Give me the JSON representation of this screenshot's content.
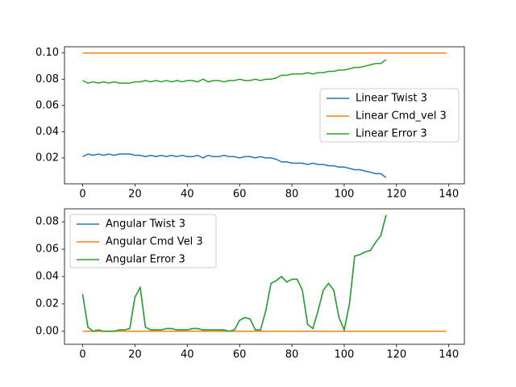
{
  "chart_data": [
    {
      "type": "line",
      "legend": "center right",
      "x": [
        0,
        2,
        4,
        6,
        8,
        10,
        12,
        14,
        16,
        18,
        20,
        22,
        24,
        26,
        28,
        30,
        32,
        34,
        36,
        38,
        40,
        42,
        44,
        46,
        48,
        50,
        52,
        54,
        56,
        58,
        60,
        62,
        64,
        66,
        68,
        70,
        72,
        74,
        76,
        78,
        80,
        82,
        84,
        86,
        88,
        90,
        92,
        94,
        96,
        98,
        100,
        102,
        104,
        106,
        108,
        110,
        112,
        114,
        116,
        139
      ],
      "xlim": [
        -6.95,
        145.95
      ],
      "xticks": [
        0,
        20,
        40,
        60,
        80,
        100,
        120,
        140
      ],
      "ylim": [
        0.00025,
        0.10475
      ],
      "yticks": [
        0.02,
        0.04,
        0.06,
        0.08,
        {
          "value": 0.1,
          "label": "0.10"
        }
      ],
      "series": [
        {
          "name": "Linear Twist 3",
          "color": "#1f77b4",
          "values": [
            0.021,
            0.023,
            0.022,
            0.023,
            0.022,
            0.023,
            0.022,
            0.023,
            0.023,
            0.023,
            0.022,
            0.022,
            0.021,
            0.022,
            0.021,
            0.022,
            0.021,
            0.022,
            0.021,
            0.022,
            0.021,
            0.021,
            0.022,
            0.02,
            0.022,
            0.021,
            0.021,
            0.022,
            0.021,
            0.021,
            0.02,
            0.021,
            0.021,
            0.02,
            0.021,
            0.02,
            0.02,
            0.019,
            0.017,
            0.017,
            0.016,
            0.016,
            0.016,
            0.015,
            0.016,
            0.015,
            0.015,
            0.014,
            0.014,
            0.013,
            0.013,
            0.012,
            0.011,
            0.011,
            0.01,
            0.009,
            0.008,
            0.008,
            0.005,
            null
          ]
        },
        {
          "name": "Linear Cmd_vel 3",
          "color": "#ff7f0e",
          "values": [
            0.1,
            0.1,
            0.1,
            0.1,
            0.1,
            0.1,
            0.1,
            0.1,
            0.1,
            0.1,
            0.1,
            0.1,
            0.1,
            0.1,
            0.1,
            0.1,
            0.1,
            0.1,
            0.1,
            0.1,
            0.1,
            0.1,
            0.1,
            0.1,
            0.1,
            0.1,
            0.1,
            0.1,
            0.1,
            0.1,
            0.1,
            0.1,
            0.1,
            0.1,
            0.1,
            0.1,
            0.1,
            0.1,
            0.1,
            0.1,
            0.1,
            0.1,
            0.1,
            0.1,
            0.1,
            0.1,
            0.1,
            0.1,
            0.1,
            0.1,
            0.1,
            0.1,
            0.1,
            0.1,
            0.1,
            0.1,
            0.1,
            0.1,
            0.1,
            0.1
          ]
        },
        {
          "name": "Linear Error 3",
          "color": "#2ca02c",
          "values": [
            0.079,
            0.077,
            0.078,
            0.077,
            0.078,
            0.077,
            0.078,
            0.077,
            0.077,
            0.077,
            0.078,
            0.078,
            0.079,
            0.078,
            0.079,
            0.078,
            0.079,
            0.078,
            0.079,
            0.078,
            0.079,
            0.079,
            0.078,
            0.08,
            0.078,
            0.079,
            0.079,
            0.078,
            0.079,
            0.079,
            0.08,
            0.079,
            0.079,
            0.08,
            0.079,
            0.08,
            0.08,
            0.081,
            0.083,
            0.083,
            0.084,
            0.084,
            0.084,
            0.085,
            0.084,
            0.085,
            0.085,
            0.086,
            0.086,
            0.087,
            0.087,
            0.088,
            0.089,
            0.089,
            0.09,
            0.091,
            0.092,
            0.092,
            0.095,
            null
          ]
        }
      ]
    },
    {
      "type": "line",
      "legend": "upper left",
      "x": [
        0,
        2,
        4,
        6,
        8,
        10,
        12,
        14,
        16,
        18,
        20,
        22,
        24,
        26,
        28,
        30,
        32,
        34,
        36,
        38,
        40,
        42,
        44,
        46,
        48,
        50,
        52,
        54,
        56,
        58,
        60,
        62,
        64,
        66,
        68,
        70,
        72,
        74,
        76,
        78,
        80,
        82,
        84,
        86,
        88,
        90,
        92,
        94,
        96,
        98,
        100,
        102,
        104,
        106,
        108,
        110,
        112,
        114,
        116,
        139
      ],
      "xlim": [
        -6.95,
        145.95
      ],
      "xticks": [
        0,
        20,
        40,
        60,
        80,
        100,
        120,
        140
      ],
      "ylim": [
        -0.0095,
        0.0895
      ],
      "yticks": [
        {
          "value": 0,
          "label": "0.00"
        },
        0.02,
        0.04,
        0.06,
        0.08
      ],
      "series": [
        {
          "name": "Angular Twist 3",
          "color": "#1f77b4",
          "values": [
            0.027,
            0.003,
            0.0,
            0.001,
            0.0,
            0.0,
            0.0,
            0.001,
            0.001,
            0.002,
            0.025,
            0.032,
            0.003,
            0.001,
            0.001,
            0.001,
            0.002,
            0.002,
            0.001,
            0.001,
            0.001,
            0.002,
            0.002,
            0.001,
            0.001,
            0.001,
            0.001,
            0.001,
            0.0,
            0.001,
            0.008,
            0.01,
            0.009,
            0.001,
            0.001,
            0.015,
            0.035,
            0.037,
            0.04,
            0.036,
            0.038,
            0.038,
            0.03,
            0.005,
            0.002,
            0.015,
            0.03,
            0.035,
            0.03,
            0.01,
            0.001,
            0.02,
            0.055,
            0.056,
            0.058,
            0.059,
            0.065,
            0.07,
            0.085,
            null
          ]
        },
        {
          "name": "Angular Cmd Vel 3",
          "color": "#ff7f0e",
          "values": [
            0,
            0,
            0,
            0,
            0,
            0,
            0,
            0,
            0,
            0,
            0,
            0,
            0,
            0,
            0,
            0,
            0,
            0,
            0,
            0,
            0,
            0,
            0,
            0,
            0,
            0,
            0,
            0,
            0,
            0,
            0,
            0,
            0,
            0,
            0,
            0,
            0,
            0,
            0,
            0,
            0,
            0,
            0,
            0,
            0,
            0,
            0,
            0,
            0,
            0,
            0,
            0,
            0,
            0,
            0,
            0,
            0,
            0,
            0,
            0
          ]
        },
        {
          "name": "Angular Error 3",
          "color": "#2ca02c",
          "values": [
            0.027,
            0.003,
            0.0,
            0.001,
            0.0,
            0.0,
            0.0,
            0.001,
            0.001,
            0.002,
            0.025,
            0.032,
            0.003,
            0.001,
            0.001,
            0.001,
            0.002,
            0.002,
            0.001,
            0.001,
            0.001,
            0.002,
            0.002,
            0.001,
            0.001,
            0.001,
            0.001,
            0.001,
            0.0,
            0.001,
            0.008,
            0.01,
            0.009,
            0.001,
            0.001,
            0.015,
            0.035,
            0.037,
            0.04,
            0.036,
            0.038,
            0.038,
            0.03,
            0.005,
            0.002,
            0.015,
            0.03,
            0.035,
            0.03,
            0.01,
            0.001,
            0.02,
            0.055,
            0.056,
            0.058,
            0.059,
            0.065,
            0.07,
            0.085,
            null
          ]
        }
      ]
    }
  ]
}
